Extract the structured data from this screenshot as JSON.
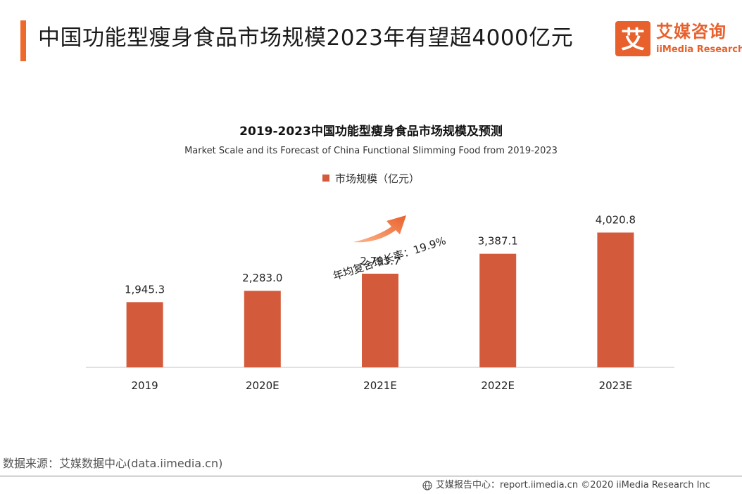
{
  "header": {
    "title": "中国功能型瘦身食品市场规模2023年有望超4000亿元"
  },
  "brand": {
    "mark": "艾",
    "name_cn": "艾媒咨询",
    "name_en": "iiMedia Research",
    "color": "#e8602c"
  },
  "chart_data": {
    "type": "bar",
    "title": "2019-2023中国功能型瘦身食品市场规模及预测",
    "subtitle": "Market Scale and its Forecast of China Functional Slimming Food from 2019-2023",
    "categories": [
      "2019",
      "2020E",
      "2021E",
      "2022E",
      "2023E"
    ],
    "series": [
      {
        "name": "市场规模（亿元）",
        "values": [
          1945.3,
          2283.0,
          2793.7,
          3387.1,
          4020.8
        ],
        "labels": [
          "1,945.3",
          "2,283.0",
          "2,793.7",
          "3,387.1",
          "4,020.8"
        ],
        "color": "#d35b3b"
      }
    ],
    "ylim": [
      0,
      5500
    ],
    "grid": false,
    "legend_position": "top-center",
    "annotation": {
      "text": "年均复合增长率：19.9%",
      "color": "#e8602c"
    }
  },
  "footer": {
    "source": "数据来源：艾媒数据中心(data.iimedia.cn)",
    "credit": "艾媒报告中心：report.iimedia.cn ©2020 iiMedia Research Inc"
  }
}
